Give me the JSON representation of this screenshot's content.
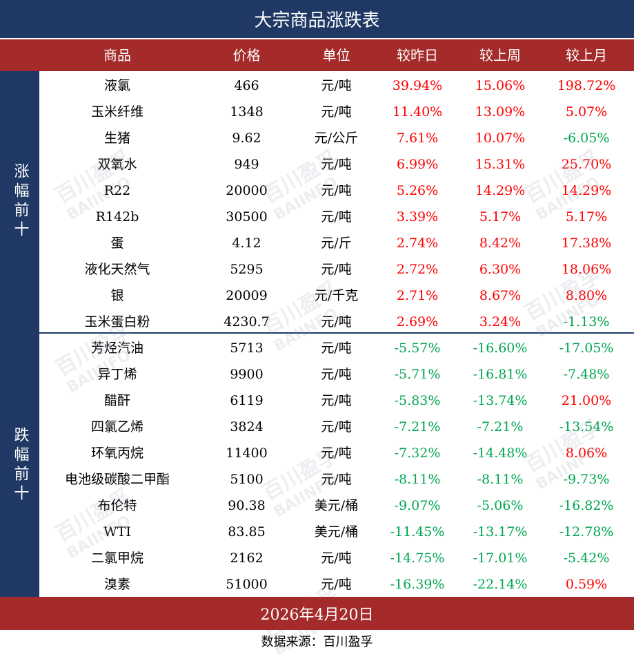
{
  "title": "大宗商品涨跌表",
  "headers": [
    "商品",
    "价格",
    "单位",
    "较昨日",
    "较上周",
    "较上月"
  ],
  "groups": [
    {
      "label": "涨幅前十",
      "rows": [
        {
          "name": "液氯",
          "price": "466",
          "unit": "元/吨",
          "d": "39.94%",
          "w": "15.06%",
          "m": "198.72%"
        },
        {
          "name": "玉米纤维",
          "price": "1348",
          "unit": "元/吨",
          "d": "11.40%",
          "w": "13.09%",
          "m": "5.07%"
        },
        {
          "name": "生猪",
          "price": "9.62",
          "unit": "元/公斤",
          "d": "7.61%",
          "w": "10.07%",
          "m": "-6.05%"
        },
        {
          "name": "双氧水",
          "price": "949",
          "unit": "元/吨",
          "d": "6.99%",
          "w": "15.31%",
          "m": "25.70%"
        },
        {
          "name": "R22",
          "price": "20000",
          "unit": "元/吨",
          "d": "5.26%",
          "w": "14.29%",
          "m": "14.29%"
        },
        {
          "name": "R142b",
          "price": "30500",
          "unit": "元/吨",
          "d": "3.39%",
          "w": "5.17%",
          "m": "5.17%"
        },
        {
          "name": "蛋",
          "price": "4.12",
          "unit": "元/斤",
          "d": "2.74%",
          "w": "8.42%",
          "m": "17.38%"
        },
        {
          "name": "液化天然气",
          "price": "5295",
          "unit": "元/吨",
          "d": "2.72%",
          "w": "6.30%",
          "m": "18.06%"
        },
        {
          "name": "银",
          "price": "20009",
          "unit": "元/千克",
          "d": "2.71%",
          "w": "8.67%",
          "m": "8.80%"
        },
        {
          "name": "玉米蛋白粉",
          "price": "4230.7",
          "unit": "元/吨",
          "d": "2.69%",
          "w": "3.24%",
          "m": "-1.13%"
        }
      ]
    },
    {
      "label": "跌幅前十",
      "rows": [
        {
          "name": "芳烃汽油",
          "price": "5713",
          "unit": "元/吨",
          "d": "-5.57%",
          "w": "-16.60%",
          "m": "-17.05%"
        },
        {
          "name": "异丁烯",
          "price": "9900",
          "unit": "元/吨",
          "d": "-5.71%",
          "w": "-16.81%",
          "m": "-7.48%"
        },
        {
          "name": "醋酐",
          "price": "6119",
          "unit": "元/吨",
          "d": "-5.83%",
          "w": "-13.74%",
          "m": "21.00%"
        },
        {
          "name": "四氯乙烯",
          "price": "3824",
          "unit": "元/吨",
          "d": "-7.21%",
          "w": "-7.21%",
          "m": "-13.54%"
        },
        {
          "name": "环氧丙烷",
          "price": "11400",
          "unit": "元/吨",
          "d": "-7.32%",
          "w": "-14.48%",
          "m": "8.06%"
        },
        {
          "name": "电池级碳酸二甲酯",
          "price": "5100",
          "unit": "元/吨",
          "d": "-8.11%",
          "w": "-8.11%",
          "m": "-9.73%"
        },
        {
          "name": "布伦特",
          "price": "90.38",
          "unit": "美元/桶",
          "d": "-9.07%",
          "w": "-5.06%",
          "m": "-16.82%"
        },
        {
          "name": "WTI",
          "price": "83.85",
          "unit": "美元/桶",
          "d": "-11.45%",
          "w": "-13.17%",
          "m": "-12.78%"
        },
        {
          "name": "二氯甲烷",
          "price": "2162",
          "unit": "元/吨",
          "d": "-14.75%",
          "w": "-17.01%",
          "m": "-5.42%"
        },
        {
          "name": "溴素",
          "price": "51000",
          "unit": "元/吨",
          "d": "-16.39%",
          "w": "-22.14%",
          "m": "0.59%"
        }
      ]
    }
  ],
  "date": "2026年4月20日",
  "source": "数据来源：百川盈孚",
  "watermark": {
    "cn": "百川盈孚",
    "en": "BAIINFO"
  },
  "colors": {
    "navy": "#1f3864",
    "red_band": "#a52a2a",
    "rise": "#ff0000",
    "fall": "#00a651"
  }
}
